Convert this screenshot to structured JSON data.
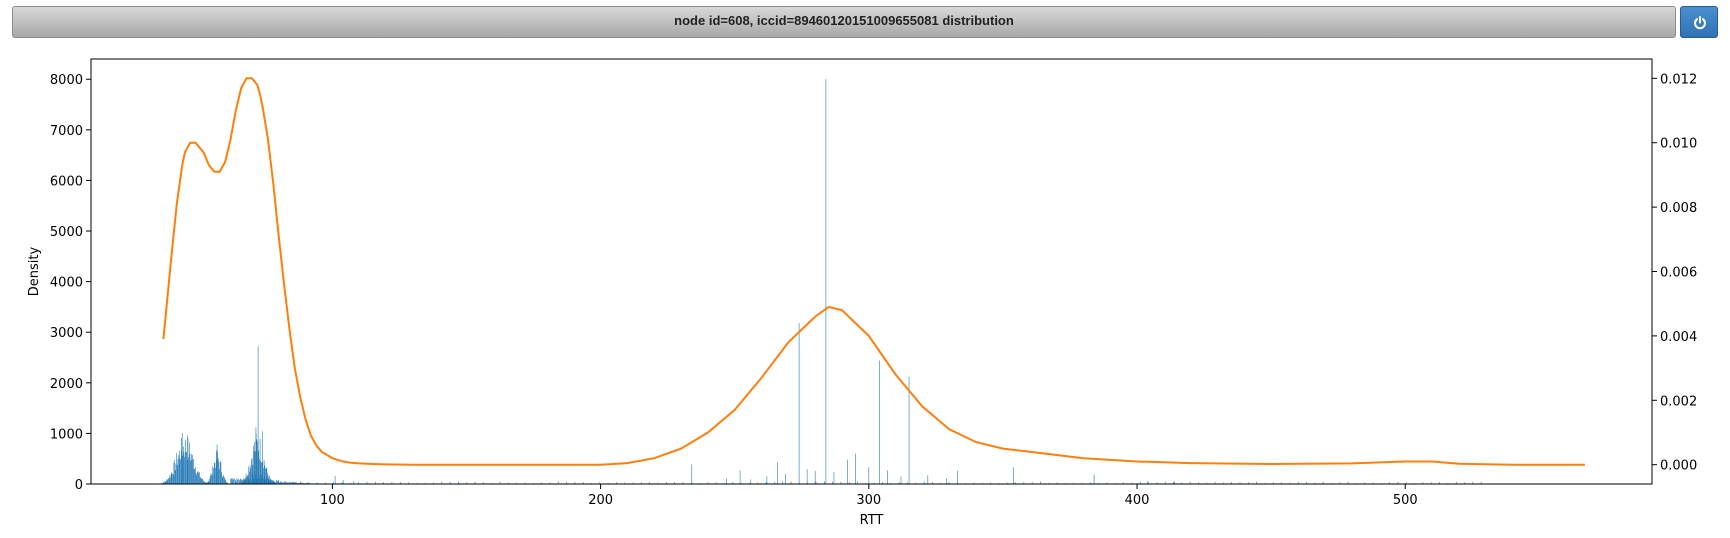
{
  "window": {
    "title": "node id=608, iccid=89460120151009655081 distribution",
    "power_icon": "power-icon"
  },
  "colors": {
    "histogram": "#1f77b4",
    "kde": "#ff7f0e"
  },
  "chart_data": {
    "type": "bar",
    "title": "",
    "xlabel": "RTT",
    "ylabel": "Density",
    "xlim": [
      10,
      592
    ],
    "ylim": [
      0,
      8400
    ],
    "y2lim": [
      -0.0006,
      0.0126
    ],
    "xticks": [
      100,
      200,
      300,
      400,
      500
    ],
    "yticks": [
      0,
      1000,
      2000,
      3000,
      4000,
      5000,
      6000,
      7000,
      8000
    ],
    "y2ticks": [
      0.0,
      0.002,
      0.004,
      0.006,
      0.008,
      0.01,
      0.012
    ],
    "y2tick_labels": [
      "0.000",
      "0.002",
      "0.004",
      "0.006",
      "0.008",
      "0.010",
      "0.012"
    ],
    "histogram": {
      "name": "histogram",
      "clusters": [
        {
          "center": 45,
          "width": 3.2,
          "peak": 1000
        },
        {
          "center": 57,
          "width": 1.6,
          "peak": 680
        },
        {
          "center": 72,
          "width": 2.4,
          "peak": 1050
        }
      ],
      "bars": [
        {
          "x": 44,
          "y": 1010
        },
        {
          "x": 46,
          "y": 960
        },
        {
          "x": 57,
          "y": 780
        },
        {
          "x": 71.5,
          "y": 1120
        },
        {
          "x": 72.3,
          "y": 2720
        },
        {
          "x": 74,
          "y": 1040
        },
        {
          "x": 101,
          "y": 160
        },
        {
          "x": 104,
          "y": 80
        },
        {
          "x": 108,
          "y": 60
        },
        {
          "x": 234,
          "y": 390
        },
        {
          "x": 247,
          "y": 110
        },
        {
          "x": 252,
          "y": 270
        },
        {
          "x": 256,
          "y": 90
        },
        {
          "x": 262,
          "y": 150
        },
        {
          "x": 266,
          "y": 430
        },
        {
          "x": 269,
          "y": 200
        },
        {
          "x": 274,
          "y": 3180
        },
        {
          "x": 277,
          "y": 290
        },
        {
          "x": 280,
          "y": 260
        },
        {
          "x": 284,
          "y": 8000
        },
        {
          "x": 287,
          "y": 240
        },
        {
          "x": 292,
          "y": 480
        },
        {
          "x": 295,
          "y": 600
        },
        {
          "x": 300,
          "y": 330
        },
        {
          "x": 304,
          "y": 2440
        },
        {
          "x": 307,
          "y": 270
        },
        {
          "x": 312,
          "y": 150
        },
        {
          "x": 315,
          "y": 2120
        },
        {
          "x": 322,
          "y": 170
        },
        {
          "x": 329,
          "y": 110
        },
        {
          "x": 333,
          "y": 260
        },
        {
          "x": 354,
          "y": 330
        },
        {
          "x": 384,
          "y": 190
        },
        {
          "x": 404,
          "y": 60
        },
        {
          "x": 414,
          "y": 50
        }
      ],
      "sparse_range": [
        85,
        530
      ],
      "sparse_height": 35
    },
    "kde": {
      "name": "kde",
      "x": [
        37,
        40,
        42,
        44,
        45,
        47,
        49,
        52,
        54,
        56,
        57,
        58,
        60,
        62,
        64,
        66,
        68,
        70,
        72,
        73,
        74,
        76,
        78,
        80,
        82,
        84,
        86,
        88,
        90,
        92,
        94,
        96,
        98,
        100,
        102,
        104,
        107,
        110,
        115,
        120,
        130,
        150,
        170,
        190,
        200,
        210,
        220,
        230,
        240,
        250,
        260,
        270,
        280,
        285,
        290,
        300,
        310,
        320,
        330,
        340,
        350,
        360,
        380,
        400,
        420,
        450,
        480,
        500,
        510,
        520,
        540,
        567
      ],
      "y": [
        0.0039,
        0.0065,
        0.0081,
        0.0093,
        0.0097,
        0.01,
        0.01,
        0.0097,
        0.0093,
        0.0091,
        0.0091,
        0.0091,
        0.0094,
        0.0101,
        0.011,
        0.0117,
        0.012,
        0.012,
        0.0118,
        0.0115,
        0.0111,
        0.0101,
        0.0087,
        0.0071,
        0.0056,
        0.0042,
        0.003,
        0.0021,
        0.0014,
        0.0009,
        0.0006,
        0.0004,
        0.0003,
        0.0002,
        0.00015,
        0.0001,
        6e-05,
        4e-05,
        2e-05,
        1e-05,
        0.0,
        0.0,
        0.0,
        0.0,
        0.0,
        5e-05,
        0.0002,
        0.0005,
        0.001,
        0.0017,
        0.0027,
        0.0038,
        0.0046,
        0.0049,
        0.0048,
        0.004,
        0.0028,
        0.0018,
        0.0011,
        0.0007,
        0.0005,
        0.0004,
        0.0002,
        0.0001,
        5e-05,
        2e-05,
        4e-05,
        0.0001,
        0.0001,
        3e-05,
        0.0,
        0.0
      ]
    }
  }
}
